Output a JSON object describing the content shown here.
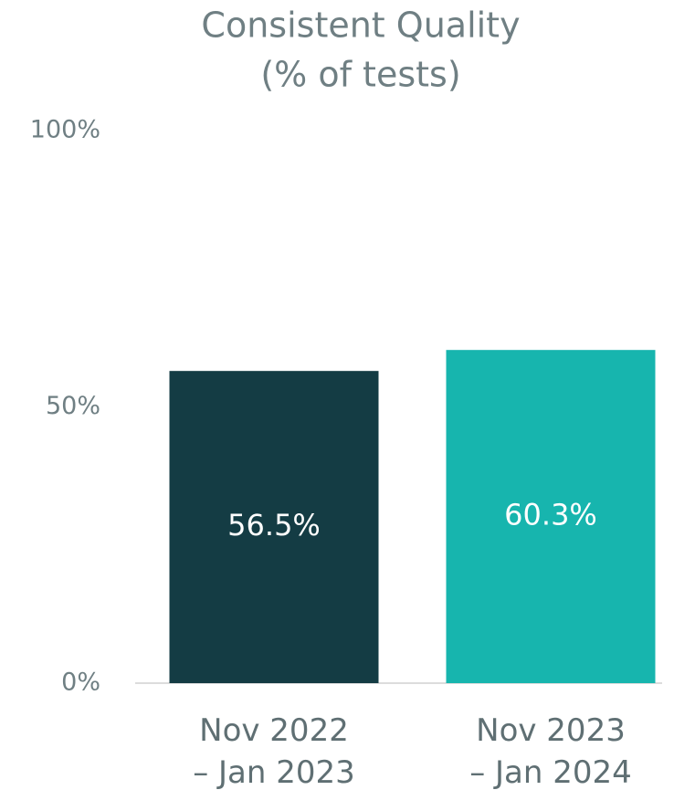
{
  "chart_data": {
    "type": "bar",
    "title": "Consistent Quality",
    "subtitle": "(% of tests)",
    "categories": [
      "Nov 2022\n– Jan 2023",
      "Nov 2023\n– Jan 2024"
    ],
    "values": [
      56.5,
      60.3
    ],
    "value_labels": [
      "56.5%",
      "60.3%"
    ],
    "colors": [
      "#143c44",
      "#17b5ae"
    ],
    "ylim": [
      0,
      100
    ],
    "yticks": [
      {
        "value": 0,
        "label": "0%"
      },
      {
        "value": 50,
        "label": "50%"
      },
      {
        "value": 100,
        "label": "100%"
      }
    ],
    "grid": false
  }
}
